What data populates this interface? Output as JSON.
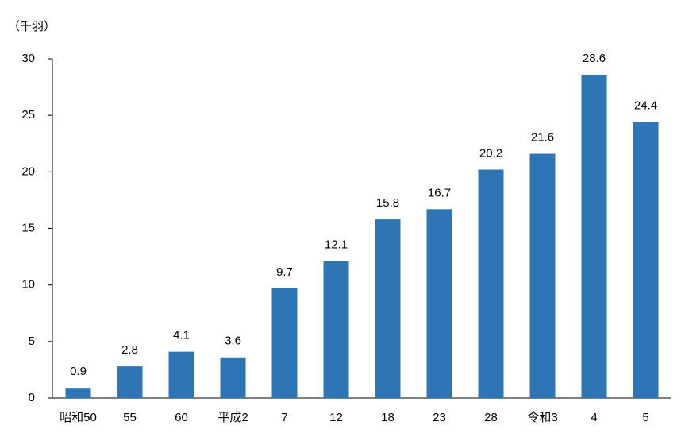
{
  "chart_data": {
    "type": "bar",
    "y_label": "（千羽）",
    "categories": [
      "昭和50",
      "55",
      "60",
      "平成2",
      "7",
      "12",
      "18",
      "23",
      "28",
      "令和3",
      "4",
      "5"
    ],
    "values": [
      0.9,
      2.8,
      4.1,
      3.6,
      9.7,
      12.1,
      15.8,
      16.7,
      20.2,
      21.6,
      28.6,
      24.4
    ],
    "color": "#2e75b6",
    "ylim": [
      0,
      30
    ],
    "yticks": [
      0,
      5,
      10,
      15,
      20,
      25,
      30
    ],
    "grid": false
  }
}
